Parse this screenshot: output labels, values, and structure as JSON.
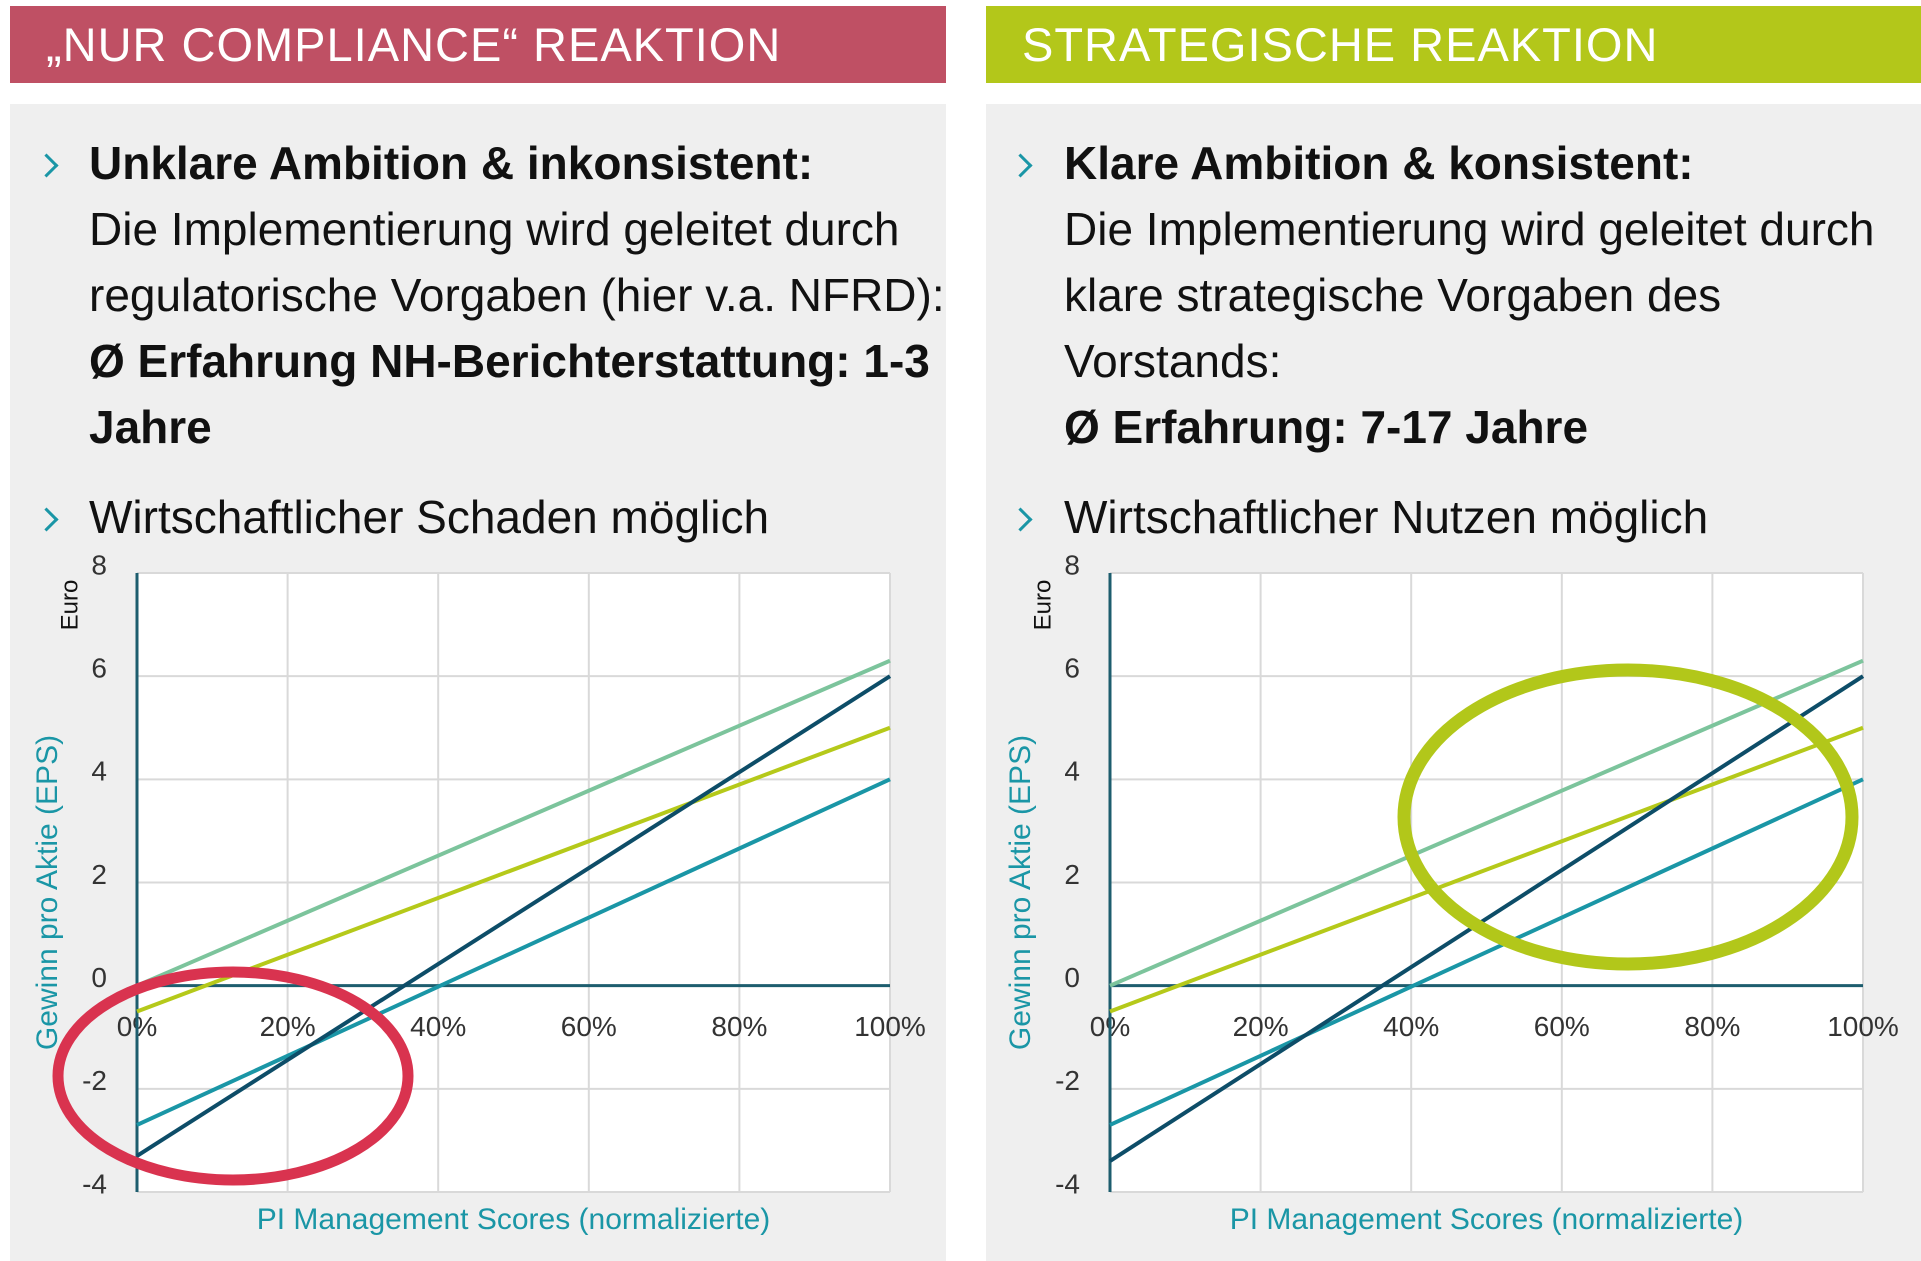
{
  "panels": [
    {
      "header": "„NUR COMPLIANCE“ REAKTION",
      "bullets": [
        {
          "lead": "Unklare Ambition & inkonsistent:",
          "body": "Die Implementierung wird geleitet durch regulatorische Vorgaben (hier v.a. NFRD):",
          "detail": "Ø Erfahrung NH-Berichterstattung: 1-3 Jahre"
        },
        {
          "text": "Wirtschaftlicher Schaden möglich"
        }
      ]
    },
    {
      "header": "STRATEGISCHE REAKTION",
      "bullets": [
        {
          "lead": "Klare Ambition & konsistent:",
          "body": "Die Implementierung wird geleitet durch klare strategische Vorgaben des Vorstands:",
          "detail": "Ø Erfahrung: 7-17 Jahre"
        },
        {
          "text": "Wirtschaftlicher Nutzen möglich"
        }
      ]
    }
  ],
  "chart_data": [
    {
      "type": "line",
      "y_label": "Gewinn pro Aktie (EPS)",
      "y_unit": "Euro",
      "x_label": "PI Management Scores (normalizierte)",
      "x": [
        0,
        1
      ],
      "xlim": [
        0,
        1
      ],
      "ylim": [
        -4,
        8
      ],
      "xticks": [
        {
          "value": 0,
          "label": "0%"
        },
        {
          "value": 0.2,
          "label": "20%"
        },
        {
          "value": 0.4,
          "label": "40%"
        },
        {
          "value": 0.6,
          "label": "60%"
        },
        {
          "value": 0.8,
          "label": "80%"
        },
        {
          "value": 1,
          "label": "100%"
        }
      ],
      "yticks": [
        -4,
        -2,
        0,
        2,
        4,
        6,
        8
      ],
      "grid": true,
      "series": [
        {
          "color": "#7cc49c",
          "values": [
            0,
            6.3
          ]
        },
        {
          "color": "#b5c91a",
          "values": [
            -0.5,
            5.0
          ]
        },
        {
          "color": "#1a96a6",
          "values": [
            -2.7,
            4.0
          ]
        },
        {
          "color": "#0d4d68",
          "values": [
            -3.3,
            6.0
          ]
        }
      ]
    },
    {
      "type": "line",
      "y_label": "Gewinn pro Aktie (EPS)",
      "y_unit": "Euro",
      "x_label": "PI Management Scores (normalizierte)",
      "x": [
        0,
        1
      ],
      "xlim": [
        0,
        1
      ],
      "ylim": [
        -4,
        8
      ],
      "xticks": [
        {
          "value": 0,
          "label": "0%"
        },
        {
          "value": 0.2,
          "label": "20%"
        },
        {
          "value": 0.4,
          "label": "40%"
        },
        {
          "value": 0.6,
          "label": "60%"
        },
        {
          "value": 0.8,
          "label": "80%"
        },
        {
          "value": 1,
          "label": "100%"
        }
      ],
      "yticks": [
        -4,
        -2,
        0,
        2,
        4,
        6,
        8
      ],
      "grid": true,
      "series": [
        {
          "color": "#7cc49c",
          "values": [
            0,
            6.3
          ]
        },
        {
          "color": "#b5c91a",
          "values": [
            -0.5,
            5.0
          ]
        },
        {
          "color": "#1a96a6",
          "values": [
            -2.7,
            4.0
          ]
        },
        {
          "color": "#0d4d68",
          "values": [
            -3.4,
            6.0
          ]
        }
      ]
    }
  ]
}
